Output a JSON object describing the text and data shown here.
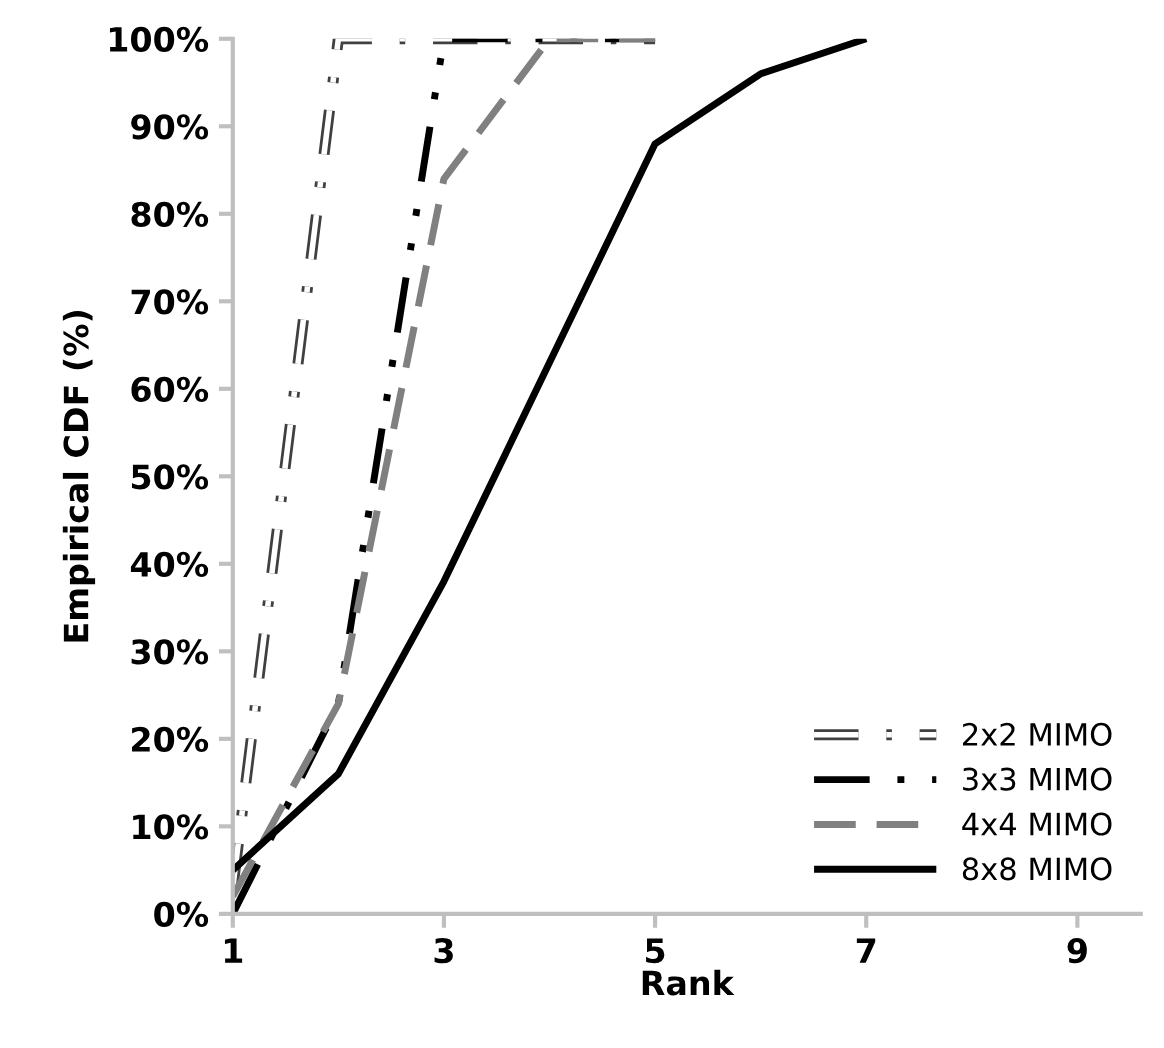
{
  "chart_data": {
    "type": "line",
    "xlabel": "Rank",
    "ylabel": "Empirical CDF (%)",
    "xlim": [
      1,
      9.6
    ],
    "xticks": [
      1,
      3,
      5,
      7,
      9
    ],
    "ylim": [
      0,
      100
    ],
    "yticks": [
      {
        "value": 0,
        "label": "0%"
      },
      {
        "value": 10,
        "label": "10%"
      },
      {
        "value": 20,
        "label": "20%"
      },
      {
        "value": 30,
        "label": "30%"
      },
      {
        "value": 40,
        "label": "40%"
      },
      {
        "value": 50,
        "label": "50%"
      },
      {
        "value": 60,
        "label": "60%"
      },
      {
        "value": 70,
        "label": "70%"
      },
      {
        "value": 80,
        "label": "80%"
      },
      {
        "value": 90,
        "label": "90%"
      },
      {
        "value": 100,
        "label": "100%"
      }
    ],
    "grid": false,
    "legend": "bottom right",
    "marker": "none",
    "series": [
      {
        "name": "2x2 MIMO",
        "color": "#ffffff",
        "line_style": "dashdot",
        "x": [
          1,
          2,
          3,
          4,
          5
        ],
        "values": [
          3,
          100,
          100,
          100,
          100
        ]
      },
      {
        "name": "3x3 MIMO",
        "color": "#000000",
        "line_style": "dashdotdot",
        "x": [
          1,
          2,
          3,
          4,
          5
        ],
        "values": [
          0,
          24,
          100,
          100,
          100
        ]
      },
      {
        "name": "4x4 MIMO",
        "color": "#808080",
        "line_style": "dashed",
        "x": [
          1,
          2,
          3,
          4,
          5
        ],
        "values": [
          2,
          24,
          84,
          100,
          100
        ]
      },
      {
        "name": "8x8 MIMO",
        "color": "#000000",
        "line_style": "solid",
        "x": [
          1,
          2,
          3,
          4,
          5,
          6,
          7
        ],
        "values": [
          5,
          16,
          38,
          63,
          88,
          96,
          100
        ]
      }
    ]
  }
}
